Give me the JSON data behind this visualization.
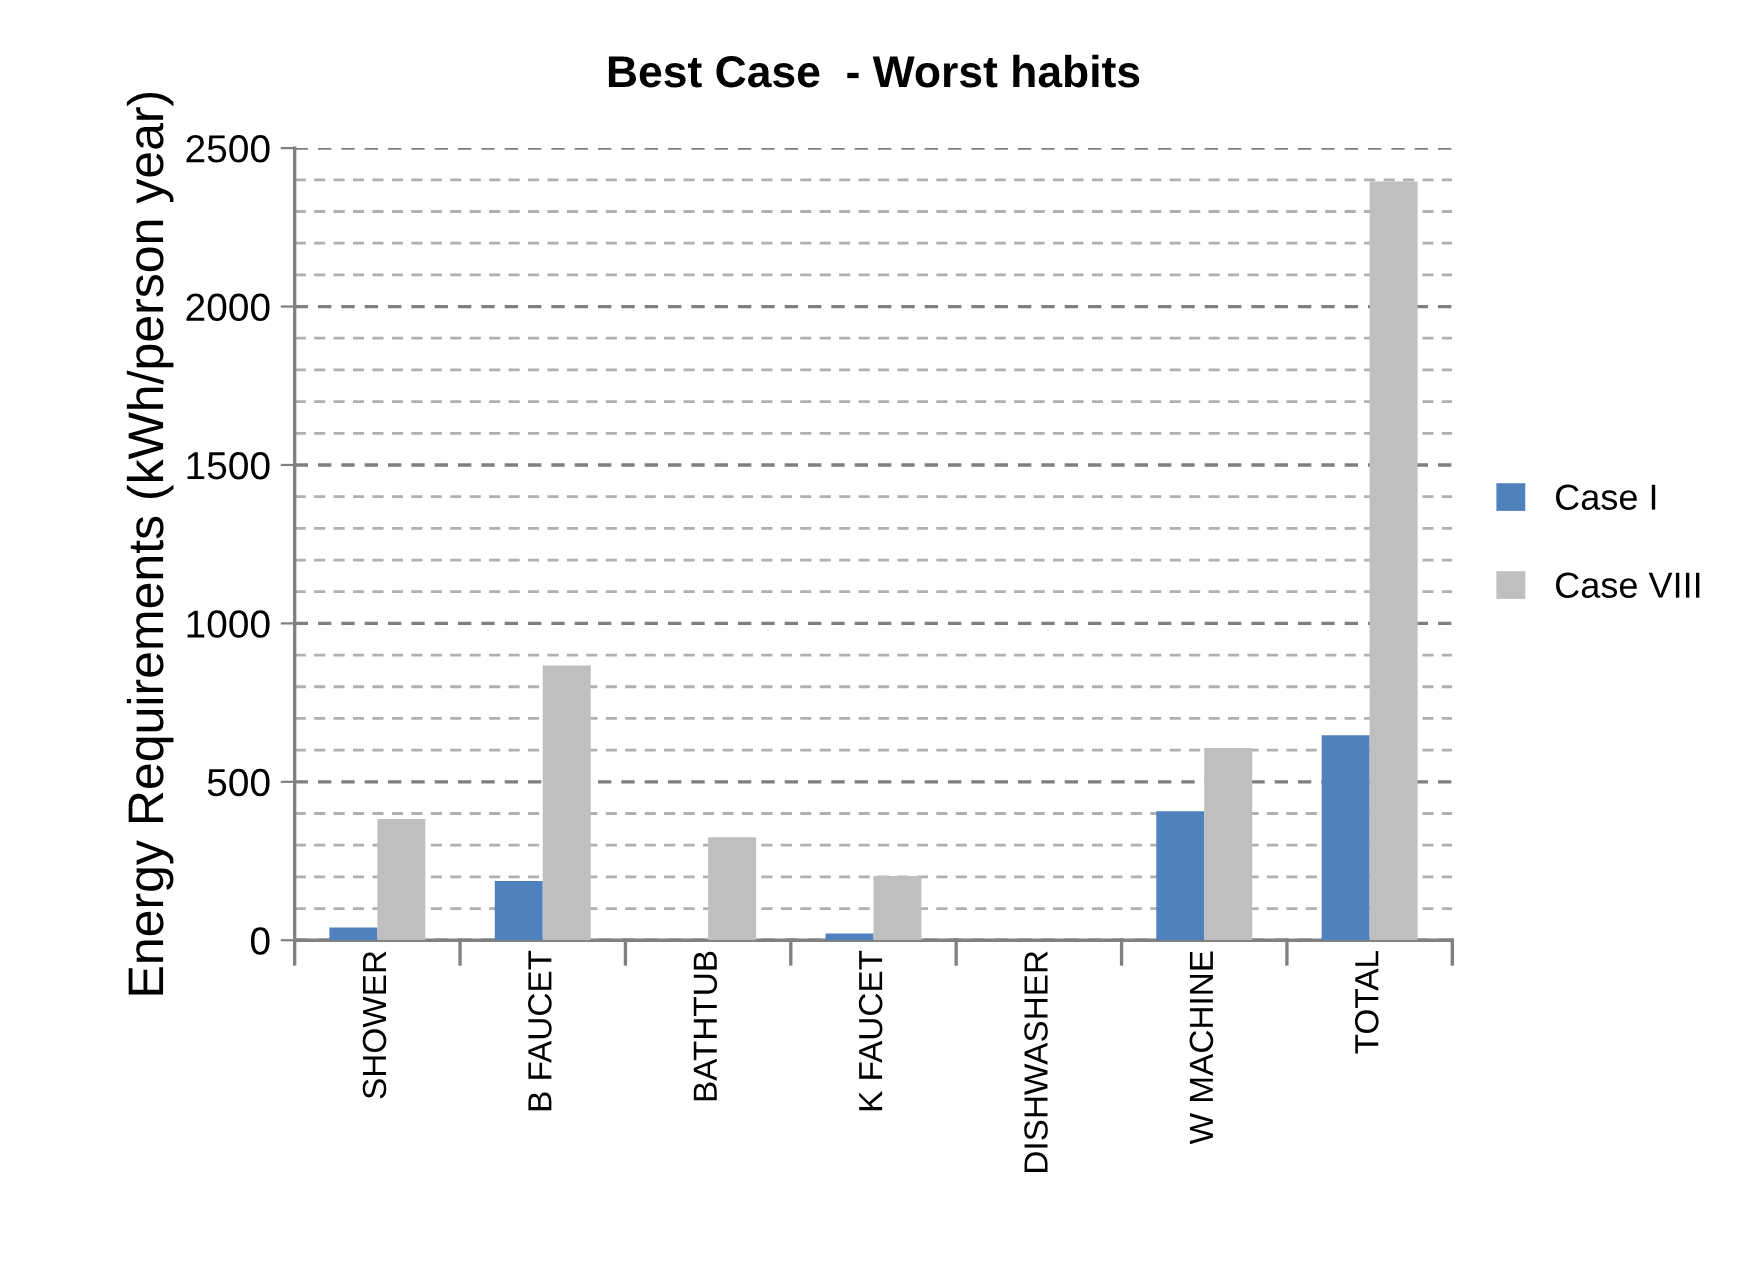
{
  "chart_data": {
    "type": "bar",
    "title": "Best Case  - Worst habits",
    "ylabel": "Energy Requirements (kWh/person year)",
    "categories": [
      "SHOWER",
      "B FAUCET",
      "BATHTUB",
      "K FAUCET",
      "DISHWASHER",
      "W MACHINE",
      "TOTAL"
    ],
    "series": [
      {
        "name": "Case I",
        "color": "#4f81bd",
        "values": [
          40,
          187,
          0,
          21,
          0,
          407,
          647
        ]
      },
      {
        "name": "Case VIII",
        "color": "#bfbfbf",
        "values": [
          383,
          867,
          325,
          203,
          0,
          607,
          2395
        ]
      }
    ],
    "ylim": [
      0,
      2500
    ],
    "yticks": [
      0,
      500,
      1000,
      1500,
      2000,
      2500
    ],
    "grid": "y",
    "legend": "right"
  }
}
